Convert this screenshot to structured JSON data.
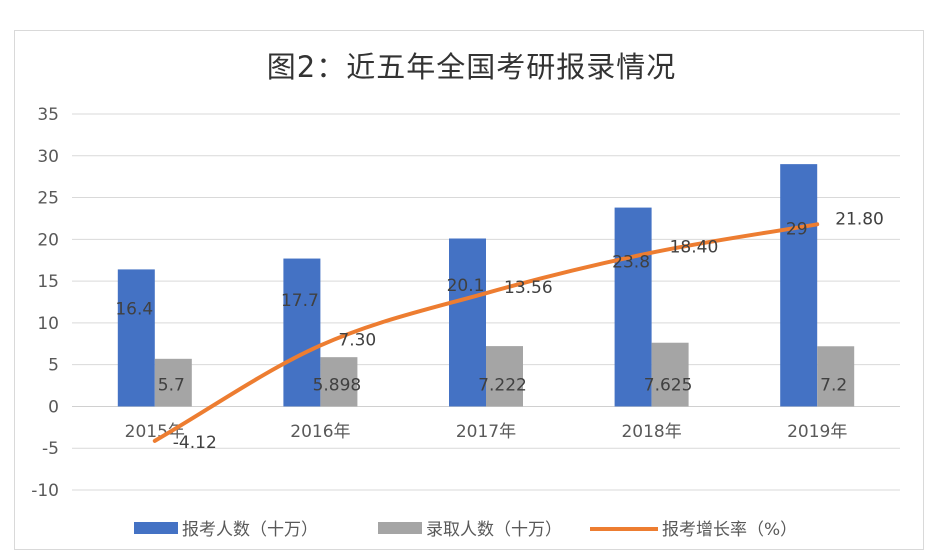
{
  "chart_data": {
    "type": "bar",
    "title": "图2：近五年全国考研报录情况",
    "categories": [
      "2015年",
      "2016年",
      "2017年",
      "2018年",
      "2019年"
    ],
    "ylim": [
      -10,
      35
    ],
    "yticks": [
      35,
      30,
      25,
      20,
      15,
      10,
      5,
      0,
      -5,
      -10
    ],
    "grid": true,
    "legend_position": "bottom",
    "series": [
      {
        "name": "报考人数（十万）",
        "type": "bar",
        "color": "#4472C4",
        "values": [
          16.4,
          17.7,
          20.1,
          23.8,
          29
        ],
        "labels": [
          "16.4",
          "17.7",
          "20.1",
          "23.8",
          "29"
        ]
      },
      {
        "name": "录取人数（十万）",
        "type": "bar",
        "color": "#A5A5A5",
        "values": [
          5.7,
          5.898,
          7.222,
          7.625,
          7.2
        ],
        "labels": [
          "5.7",
          "5.898",
          "7.222",
          "7.625",
          "7.2"
        ]
      },
      {
        "name": "报考增长率（%）",
        "type": "line",
        "color": "#ED7D31",
        "values": [
          -4.12,
          7.3,
          13.56,
          18.4,
          21.8
        ],
        "labels": [
          "-4.12",
          "7.30",
          "13.56",
          "18.40",
          "21.80"
        ]
      }
    ]
  }
}
